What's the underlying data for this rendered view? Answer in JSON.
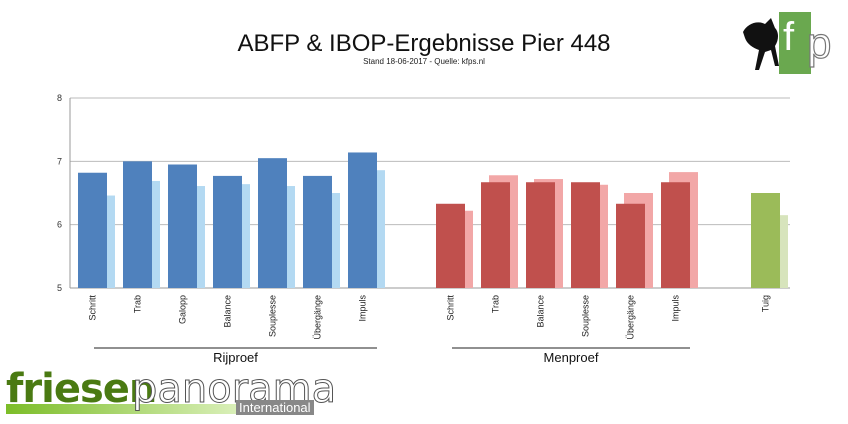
{
  "header": {
    "title": "ABFP & IBOP-Ergebnisse Pier 448",
    "subtitle": "Stand 18-06-2017 - Quelle: kfps.nl"
  },
  "logos": {
    "corner_logo_text": "fp",
    "corner_logo_icon": "horse-silhouette-icon",
    "brand_word_1": "friesen",
    "brand_word_2": "panorama",
    "brand_word_3": "International"
  },
  "chart_data": {
    "type": "bar",
    "ylim": [
      5,
      8
    ],
    "yticks": [
      5,
      6,
      7,
      8
    ],
    "grid": true,
    "groups": [
      {
        "label": "Rijproef",
        "categories": [
          "Schritt",
          "Trab",
          "Galopp",
          "Balance",
          "Souplesse",
          "Übergänge",
          "Impuls"
        ],
        "values": [
          6.82,
          7.0,
          6.95,
          6.77,
          7.05,
          6.77,
          7.14
        ],
        "reference_values": [
          6.46,
          6.69,
          6.61,
          6.64,
          6.61,
          6.5,
          6.86
        ],
        "color": "#4f81bd",
        "reference_color": "#b3d9f2"
      },
      {
        "label": "Menproef",
        "categories": [
          "Schritt",
          "Trab",
          "Balance",
          "Souplesse",
          "Übergänge",
          "Impuls"
        ],
        "values": [
          6.33,
          6.67,
          6.67,
          6.67,
          6.33,
          6.67
        ],
        "reference_values": [
          6.22,
          6.78,
          6.72,
          6.63,
          6.5,
          6.83
        ],
        "color": "#c0504d",
        "reference_color": "#f2a7a7"
      },
      {
        "label": "",
        "categories": [
          "Tuig"
        ],
        "values": [
          6.5
        ],
        "reference_values": [
          6.15
        ],
        "color": "#9bbb59",
        "reference_color": "#d7e4bc"
      }
    ]
  }
}
